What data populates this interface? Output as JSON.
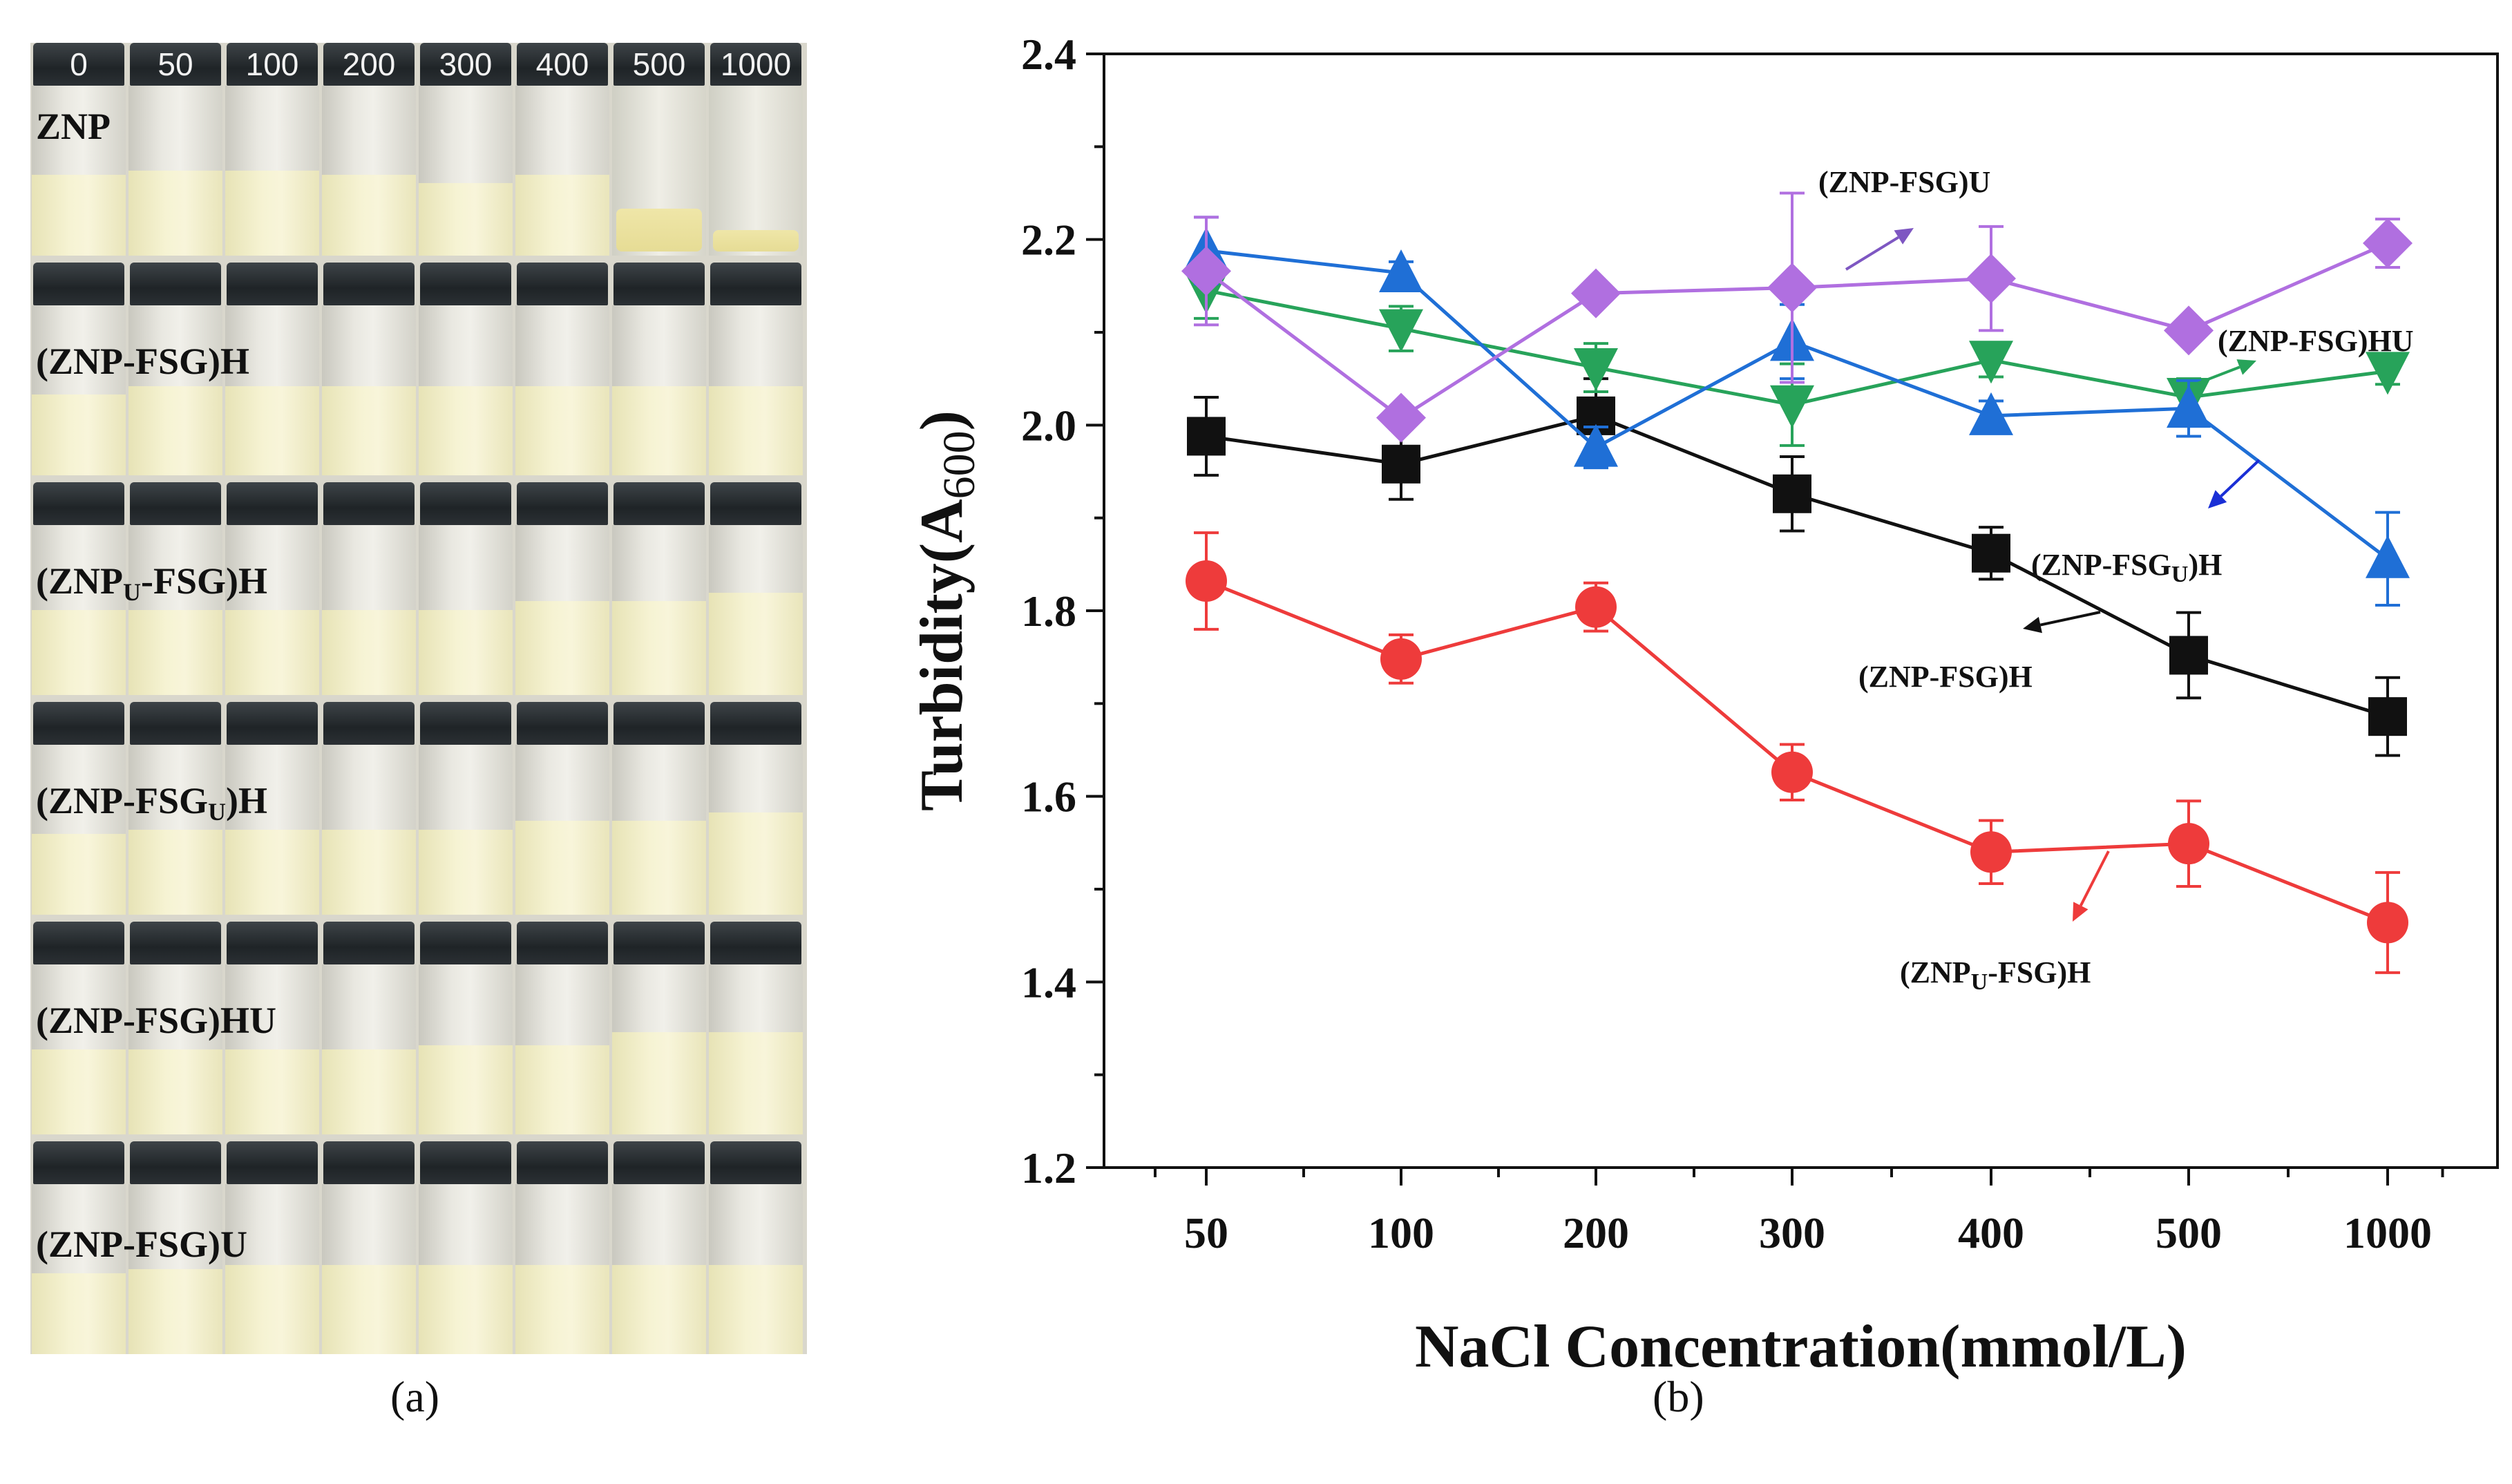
{
  "figure": {
    "caption_a": "(a)",
    "caption_b": "(b)"
  },
  "photo_panel": {
    "concentration_labels": [
      "0",
      "50",
      "100",
      "200",
      "300",
      "400",
      "500",
      "1000"
    ],
    "row_labels": [
      {
        "main": "ZNP",
        "sub": "",
        "rest": ""
      },
      {
        "main": "(ZNP-FSG)H",
        "sub": "",
        "rest": ""
      },
      {
        "main": "(ZNP",
        "sub": "U",
        "rest": "-FSG)H"
      },
      {
        "main": "(ZNP-FSG",
        "sub": "U",
        "rest": ")H"
      },
      {
        "main": "(ZNP-FSG)HU",
        "sub": "",
        "rest": ""
      },
      {
        "main": "(ZNP-FSG)U",
        "sub": "",
        "rest": ""
      }
    ]
  },
  "chart_data": {
    "type": "line",
    "xlabel": "NaCl Concentration(mmol/L)",
    "ylabel_main": "Turbidity(A",
    "ylabel_sub": "600",
    "ylabel_end": ")",
    "categories": [
      "50",
      "100",
      "200",
      "300",
      "400",
      "500",
      "1000"
    ],
    "ylim": [
      1.2,
      2.4
    ],
    "yticks": [
      "1.2",
      "1.4",
      "1.6",
      "1.8",
      "2.0",
      "2.2",
      "2.4"
    ],
    "series": [
      {
        "name": "(ZNP-FSG)H",
        "marker": "square",
        "color": "#111111",
        "values": [
          1.988,
          1.958,
          2.01,
          1.926,
          1.862,
          1.752,
          1.686
        ],
        "errors": [
          0.042,
          0.038,
          0.04,
          0.04,
          0.028,
          0.046,
          0.042
        ]
      },
      {
        "name": "(ZNPU-FSG)H",
        "marker": "circle",
        "color": "#ee3b3b",
        "values": [
          1.832,
          1.748,
          1.804,
          1.626,
          1.54,
          1.549,
          1.464
        ],
        "errors": [
          0.052,
          0.026,
          0.026,
          0.03,
          0.034,
          0.046,
          0.054
        ]
      },
      {
        "name": "(ZNP-FSGU)H",
        "marker": "triangle-up",
        "color": "#1f6fd6",
        "values": [
          2.188,
          2.164,
          1.976,
          2.09,
          2.01,
          2.018,
          1.856
        ],
        "errors": [
          0.036,
          0.012,
          0.022,
          0.04,
          0.016,
          0.03,
          0.05
        ]
      },
      {
        "name": "(ZNP-FSG)HU",
        "marker": "triangle-down",
        "color": "#27a35a",
        "values": [
          2.145,
          2.104,
          2.062,
          2.022,
          2.07,
          2.03,
          2.058
        ],
        "errors": [
          0.03,
          0.024,
          0.026,
          0.044,
          0.018,
          0.02,
          0.014
        ]
      },
      {
        "name": "(ZNP-FSG)U",
        "marker": "diamond",
        "color": "#b06fe0",
        "values": [
          2.166,
          2.008,
          2.142,
          2.148,
          2.158,
          2.102,
          2.196
        ],
        "errors": [
          0.058,
          0.01,
          0.01,
          0.102,
          0.056,
          0.01,
          0.026
        ]
      }
    ],
    "annotations": [
      {
        "main": "(ZNP-FSG)U",
        "sub": "",
        "rest": "",
        "color": "#7e57c2",
        "series": "(ZNP-FSG)U"
      },
      {
        "main": "(ZNP-FSG)HU",
        "sub": "",
        "rest": "",
        "color": "#27a35a",
        "series": "(ZNP-FSG)HU"
      },
      {
        "main": "(ZNP-FSG",
        "sub": "U",
        "rest": ")H",
        "color": "#1a2fd6",
        "series": "(ZNP-FSGU)H"
      },
      {
        "main": "(ZNP-FSG)H",
        "sub": "",
        "rest": "",
        "color": "#111111",
        "series": "(ZNP-FSG)H"
      },
      {
        "main": "(ZNP",
        "sub": "U",
        "rest": "-FSG)H",
        "color": "#ee3b3b",
        "series": "(ZNPU-FSG)H"
      }
    ]
  }
}
